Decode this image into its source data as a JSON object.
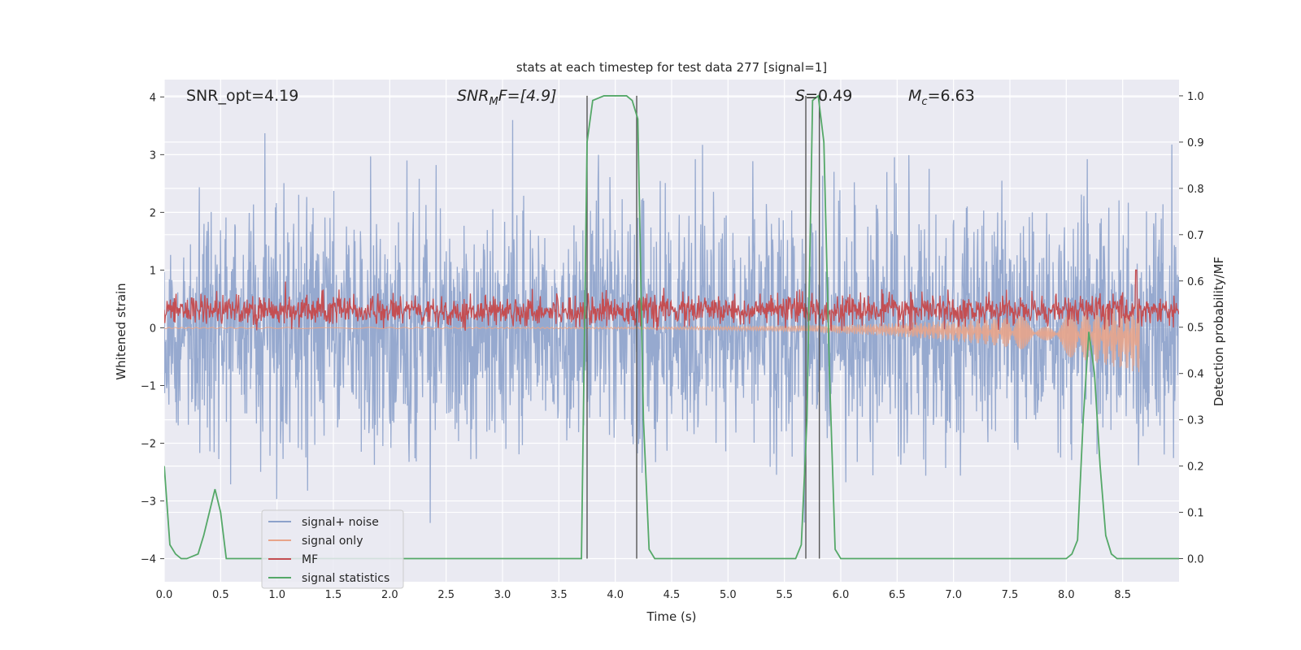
{
  "chart_data": {
    "type": "line",
    "title": "stats at each timestep for test data 277 [signal=1]",
    "xlabel": "Time (s)",
    "ylabel_left": "Whitened strain",
    "ylabel_right": "Detection probability/MF",
    "xlim": [
      0,
      9.0
    ],
    "ylim_left": [
      -4.4,
      4.3
    ],
    "ylim_right": [
      -0.05,
      1.035
    ],
    "x_ticks": [
      "0.0",
      "0.5",
      "1.0",
      "1.5",
      "2.0",
      "2.5",
      "3.0",
      "3.5",
      "4.0",
      "4.5",
      "5.0",
      "5.5",
      "6.0",
      "6.5",
      "7.0",
      "7.5",
      "8.0",
      "8.5"
    ],
    "y_ticks_left": [
      "4",
      "3",
      "2",
      "1",
      "0",
      "−1",
      "−2",
      "−3",
      "−4"
    ],
    "y_ticks_right": [
      "1.0",
      "0.9",
      "0.8",
      "0.7",
      "0.6",
      "0.5",
      "0.4",
      "0.3",
      "0.2",
      "0.1",
      "0.0"
    ],
    "grid": true,
    "legend_position": "lower-left",
    "annotations": {
      "snr_opt": "SNR_opt=4.19",
      "snr_mf_main": "SNR",
      "snr_mf_sub": "M",
      "snr_mf_rest": "F=[4.9]",
      "s_main": "S",
      "s_rest": "=0.49",
      "mc_main": "M",
      "mc_sub": "c",
      "mc_rest": "=6.63"
    },
    "series": [
      {
        "name": "signal+ noise",
        "color": "#8da2cb",
        "axis": "left",
        "note_style": "dense noise, amplitude ~ ±2.5 with peaks to ~3.6 / -3.9"
      },
      {
        "name": "signal only",
        "color": "#e8a48a",
        "axis": "left",
        "x_end": 8.65,
        "envelope_min_at_end": -0.6
      },
      {
        "name": "MF",
        "color": "#c44e52",
        "axis": "left",
        "center": 0.3,
        "max": 1.0
      },
      {
        "name": "signal statistics",
        "color": "#55a868",
        "axis": "right",
        "x": [
          0.0,
          0.05,
          0.1,
          0.15,
          0.2,
          0.3,
          0.35,
          0.4,
          0.45,
          0.5,
          0.55,
          0.6,
          3.6,
          3.7,
          3.75,
          3.8,
          3.9,
          4.0,
          4.1,
          4.15,
          4.2,
          4.25,
          4.3,
          4.35,
          4.4,
          5.6,
          5.65,
          5.7,
          5.75,
          5.8,
          5.85,
          5.9,
          5.95,
          6.0,
          8.0,
          8.05,
          8.1,
          8.15,
          8.2,
          8.25,
          8.3,
          8.35,
          8.4,
          8.45,
          8.5,
          9.0
        ],
        "y": [
          0.2,
          0.03,
          0.01,
          0.0,
          0.0,
          0.01,
          0.05,
          0.1,
          0.15,
          0.1,
          0.0,
          0.0,
          0.0,
          0.0,
          0.9,
          0.99,
          1.0,
          1.0,
          1.0,
          0.99,
          0.95,
          0.3,
          0.02,
          0.0,
          0.0,
          0.0,
          0.03,
          0.3,
          0.99,
          1.0,
          0.9,
          0.4,
          0.02,
          0.0,
          0.0,
          0.01,
          0.04,
          0.3,
          0.49,
          0.4,
          0.2,
          0.05,
          0.01,
          0.0,
          0.0,
          0.0
        ]
      },
      {
        "name": "detection markers",
        "color": "#555555",
        "axis": "right",
        "type": "vlines",
        "x": [
          3.75,
          4.19,
          5.69,
          5.81
        ],
        "ymin": 0.0,
        "ymax": 1.0
      }
    ]
  }
}
